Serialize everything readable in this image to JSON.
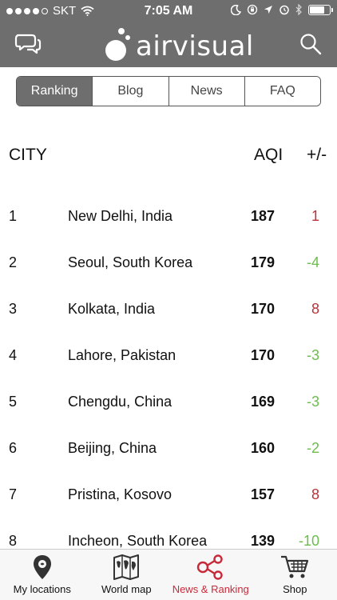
{
  "status_bar": {
    "carrier": "SKT",
    "time": "7:05 AM",
    "signal_bars_filled": 4,
    "signal_bars_total": 5,
    "battery_level": 0.8
  },
  "header": {
    "logo_text": "airvisual",
    "left_icon": "chat-bubbles-icon",
    "right_icon": "search-icon"
  },
  "segments": [
    {
      "label": "Ranking",
      "active": true
    },
    {
      "label": "Blog",
      "active": false
    },
    {
      "label": "News",
      "active": false
    },
    {
      "label": "FAQ",
      "active": false
    }
  ],
  "table": {
    "col_city": "CITY",
    "col_aqi": "AQI",
    "col_delta": "+/-",
    "rows": [
      {
        "rank": "1",
        "city": "New Delhi, India",
        "aqi": "187",
        "delta": "1"
      },
      {
        "rank": "2",
        "city": "Seoul, South Korea",
        "aqi": "179",
        "delta": "-4"
      },
      {
        "rank": "3",
        "city": "Kolkata, India",
        "aqi": "170",
        "delta": "8"
      },
      {
        "rank": "4",
        "city": "Lahore, Pakistan",
        "aqi": "170",
        "delta": "-3"
      },
      {
        "rank": "5",
        "city": "Chengdu, China",
        "aqi": "169",
        "delta": "-3"
      },
      {
        "rank": "6",
        "city": "Beijing, China",
        "aqi": "160",
        "delta": "-2"
      },
      {
        "rank": "7",
        "city": "Pristina, Kosovo",
        "aqi": "157",
        "delta": "8"
      },
      {
        "rank": "8",
        "city": "Incheon, South Korea",
        "aqi": "139",
        "delta": "-10"
      }
    ]
  },
  "tab_bar": [
    {
      "label": "My locations",
      "icon": "location-pin-icon",
      "active": false
    },
    {
      "label": "World map",
      "icon": "world-map-icon",
      "active": false
    },
    {
      "label": "News & Ranking",
      "icon": "share-network-icon",
      "active": true
    },
    {
      "label": "Shop",
      "icon": "shopping-cart-icon",
      "active": false
    }
  ],
  "colors": {
    "header_gray": "#6e6e6e",
    "increase_red": "#b8333a",
    "decrease_green": "#6cbd4e",
    "active_tab_red": "#c8293a"
  }
}
